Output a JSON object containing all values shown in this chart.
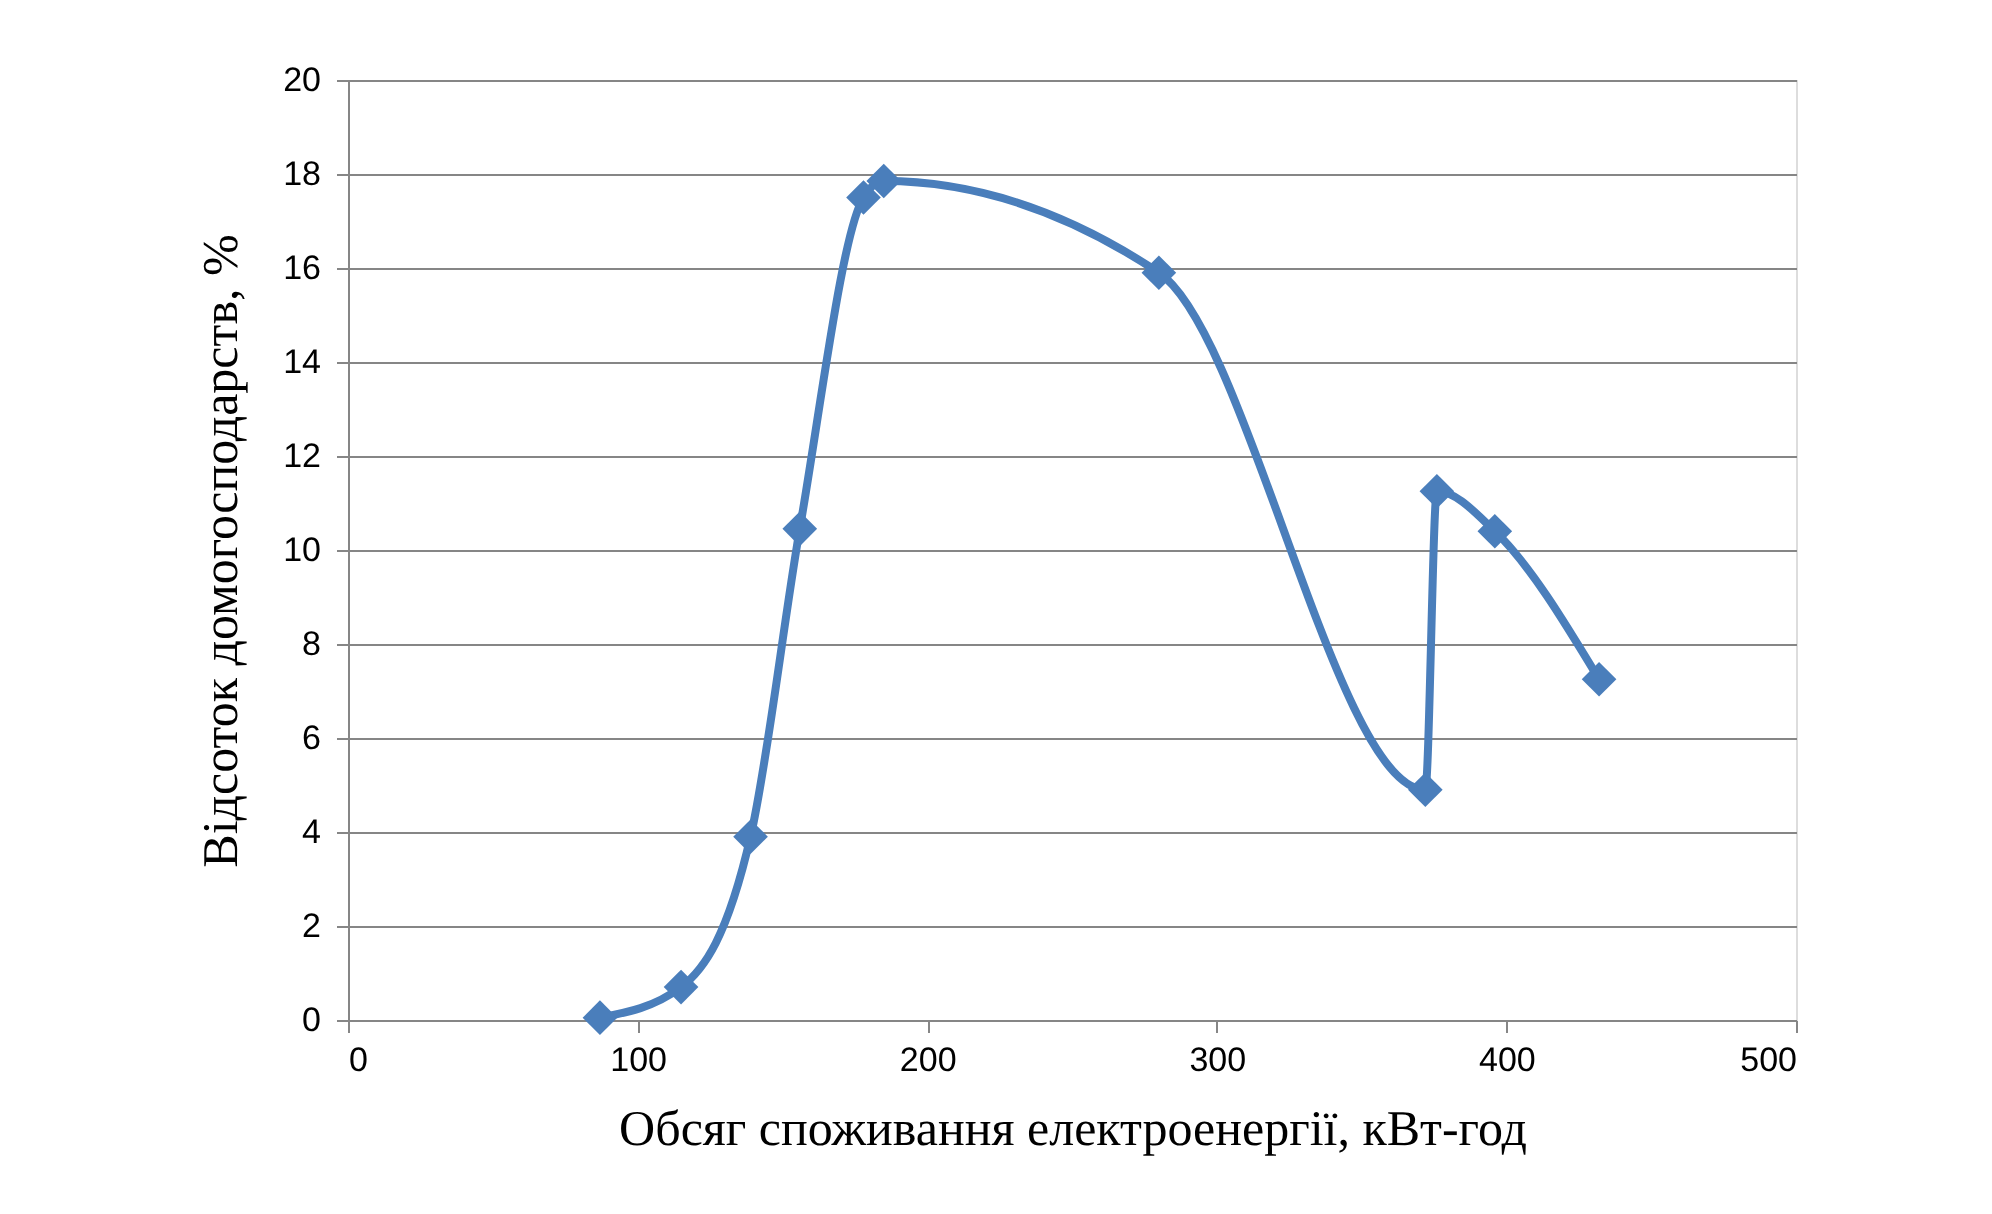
{
  "chart_data": {
    "type": "line",
    "xlabel": "Обсяг споживання електроенергії, кВт-год",
    "ylabel": "Відсоток домогосподарств, %",
    "x": [
      87,
      115,
      139,
      156,
      178,
      185,
      280,
      372,
      376,
      396,
      432
    ],
    "series": [
      {
        "color": "#4a7ebb",
        "values": [
          0.05,
          0.7,
          3.9,
          10.45,
          17.5,
          17.85,
          15.9,
          4.9,
          11.25,
          10.4,
          7.25
        ]
      }
    ],
    "xlim": [
      0,
      500
    ],
    "xticks": [
      0,
      100,
      200,
      300,
      400,
      500
    ],
    "ylim": [
      0,
      20
    ],
    "yticks": [
      0,
      2,
      4,
      6,
      8,
      10,
      12,
      14,
      16,
      18,
      20
    ],
    "grid": "y",
    "marker": "diamond",
    "line_style": "solid"
  }
}
